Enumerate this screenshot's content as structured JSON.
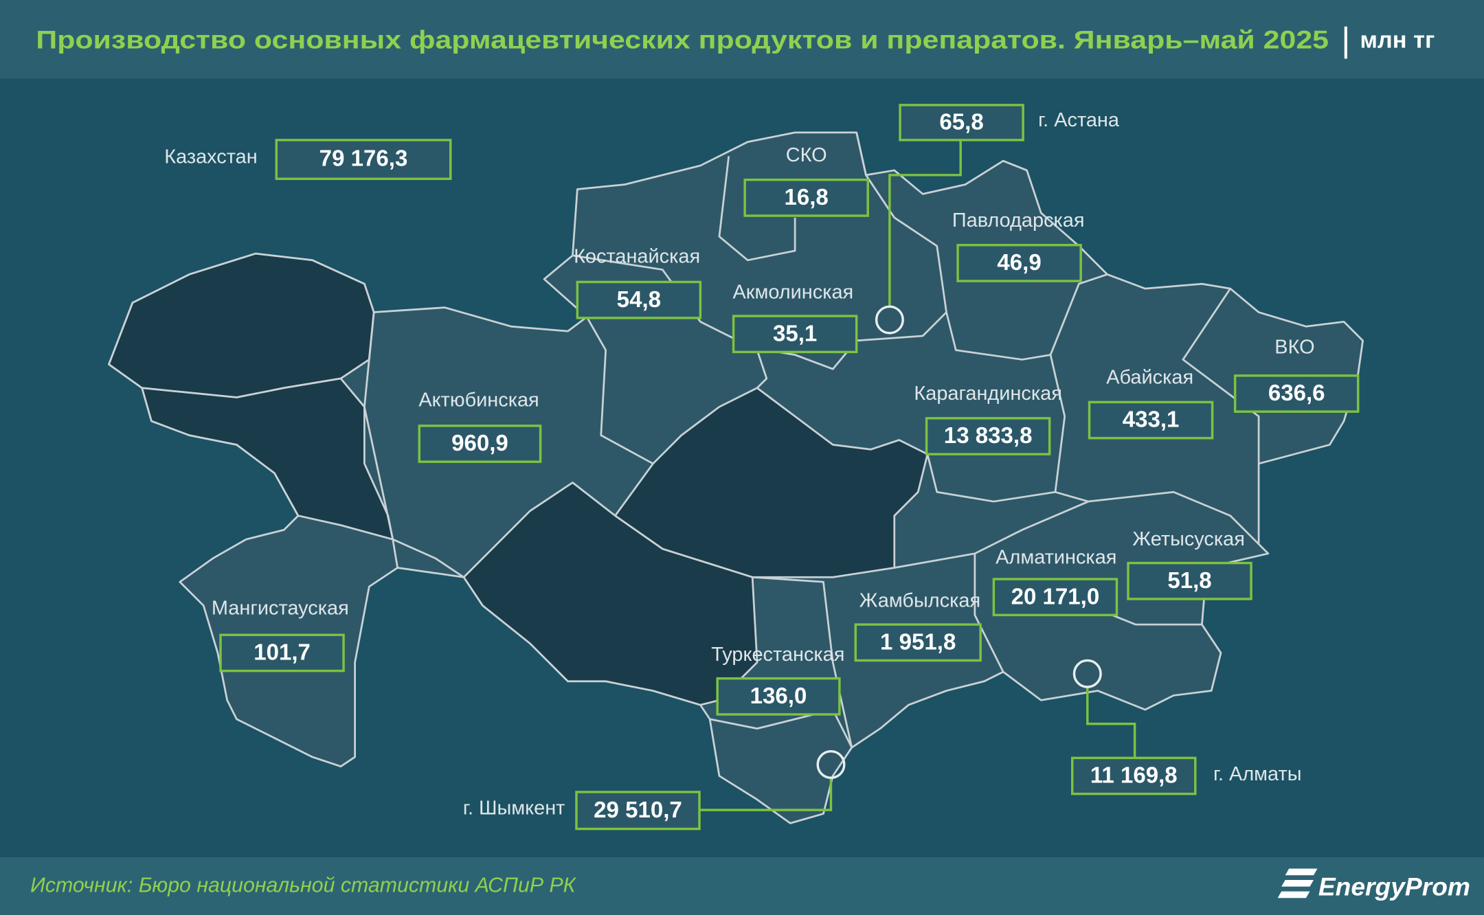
{
  "header": {
    "title": "Производство основных фармацевтических продуктов и препаратов. Январь–май 2025",
    "unit": "млн тг"
  },
  "total": {
    "label": "Казахстан",
    "value": "79 176,3"
  },
  "regions": [
    {
      "name": "СКО",
      "value": "16,8"
    },
    {
      "name": "Павлодарская",
      "value": "46,9"
    },
    {
      "name": "Костанайская",
      "value": "54,8"
    },
    {
      "name": "Акмолинская",
      "value": "35,1"
    },
    {
      "name": "ВКО",
      "value": "636,6"
    },
    {
      "name": "Абайская",
      "value": "433,1"
    },
    {
      "name": "Актюбинская",
      "value": "960,9"
    },
    {
      "name": "Карагандинская",
      "value": "13 833,8"
    },
    {
      "name": "Жетысуская",
      "value": "51,8"
    },
    {
      "name": "Алматинская",
      "value": "20 171,0"
    },
    {
      "name": "Жамбылская",
      "value": "1 951,8"
    },
    {
      "name": "Мангистауская",
      "value": "101,7"
    },
    {
      "name": "Туркестанская",
      "value": "136,0"
    }
  ],
  "cities": [
    {
      "name": "г. Астана",
      "value": "65,8"
    },
    {
      "name": "г. Шымкент",
      "value": "29 510,7"
    },
    {
      "name": "г. Алматы",
      "value": "11 169,8"
    }
  ],
  "footer": {
    "source": "Источник: Бюро национальной статистики АСПиР РК",
    "logo": "EnergyProm"
  }
}
